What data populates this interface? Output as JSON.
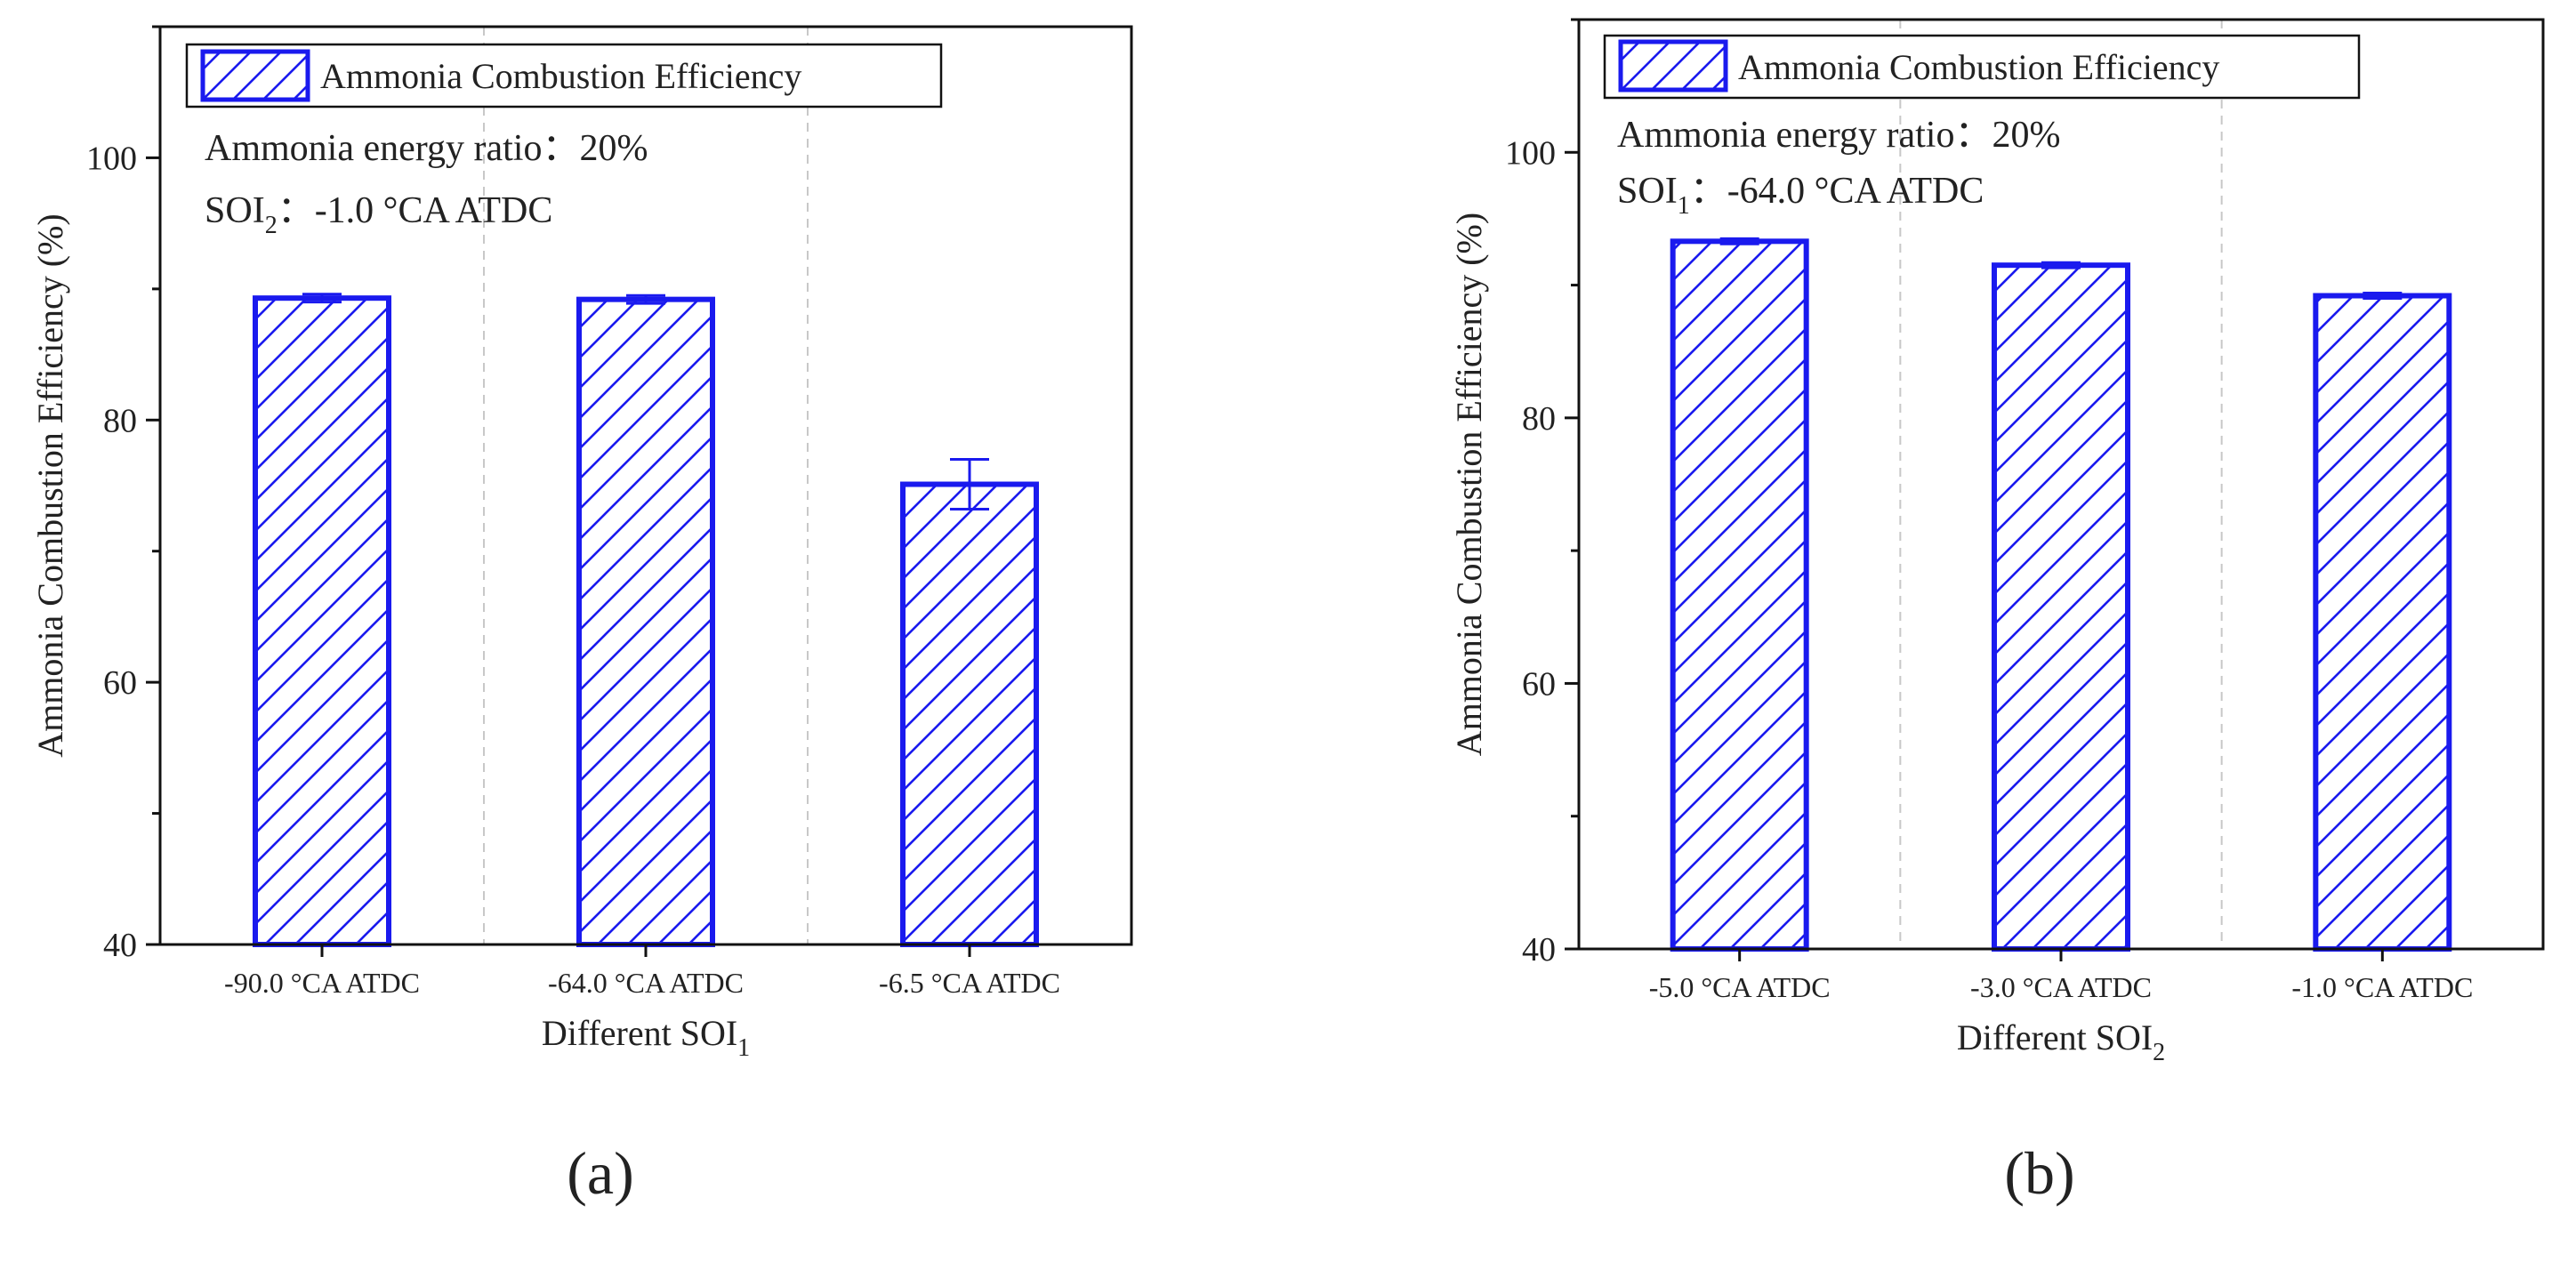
{
  "figure": {
    "panel_a_label": "(a)",
    "panel_b_label": "(b)"
  },
  "colors": {
    "bar": "#1a1aee",
    "frame": "#111111",
    "grid": "#c8c8c8"
  },
  "chart_data": [
    {
      "type": "bar",
      "panel": "a",
      "categories": [
        "-90.0 °CA ATDC",
        "-64.0 °CA ATDC",
        "-6.5 °CA ATDC"
      ],
      "series": [
        {
          "name": "Ammonia Combustion Efficiency",
          "values": [
            89.3,
            89.2,
            75.1
          ],
          "errors": [
            0.3,
            0.3,
            1.9
          ]
        }
      ],
      "title": "",
      "xlabel_main": "Different SOI",
      "xlabel_sub": "1",
      "ylabel": "Ammonia Combustion Efficiency (%)",
      "ylim": [
        40,
        110
      ],
      "yticks": [
        40,
        60,
        80,
        100
      ],
      "legend": "top-left",
      "legend_label": "Ammonia Combustion Efficiency",
      "annotations": {
        "line1": "Ammonia energy ratio：20%",
        "line2_prefix": "SOI",
        "line2_sub": "2",
        "line2_rest": "：-1.0 °CA ATDC"
      }
    },
    {
      "type": "bar",
      "panel": "b",
      "categories": [
        "-5.0 °CA ATDC",
        "-3.0 °CA ATDC",
        "-1.0 °CA ATDC"
      ],
      "series": [
        {
          "name": "Ammonia Combustion Efficiency",
          "values": [
            93.3,
            91.5,
            89.2
          ],
          "errors": [
            0.2,
            0.2,
            0.2
          ]
        }
      ],
      "title": "",
      "xlabel_main": "Different SOI",
      "xlabel_sub": "2",
      "ylabel": "Ammonia Combustion Efficiency (%)",
      "ylim": [
        40,
        110
      ],
      "yticks": [
        40,
        60,
        80,
        100
      ],
      "legend": "top-left",
      "legend_label": "Ammonia Combustion Efficiency",
      "annotations": {
        "line1": "Ammonia energy ratio：20%",
        "line2_prefix": "SOI",
        "line2_sub": "1",
        "line2_rest": "：-64.0 °CA ATDC"
      }
    }
  ]
}
